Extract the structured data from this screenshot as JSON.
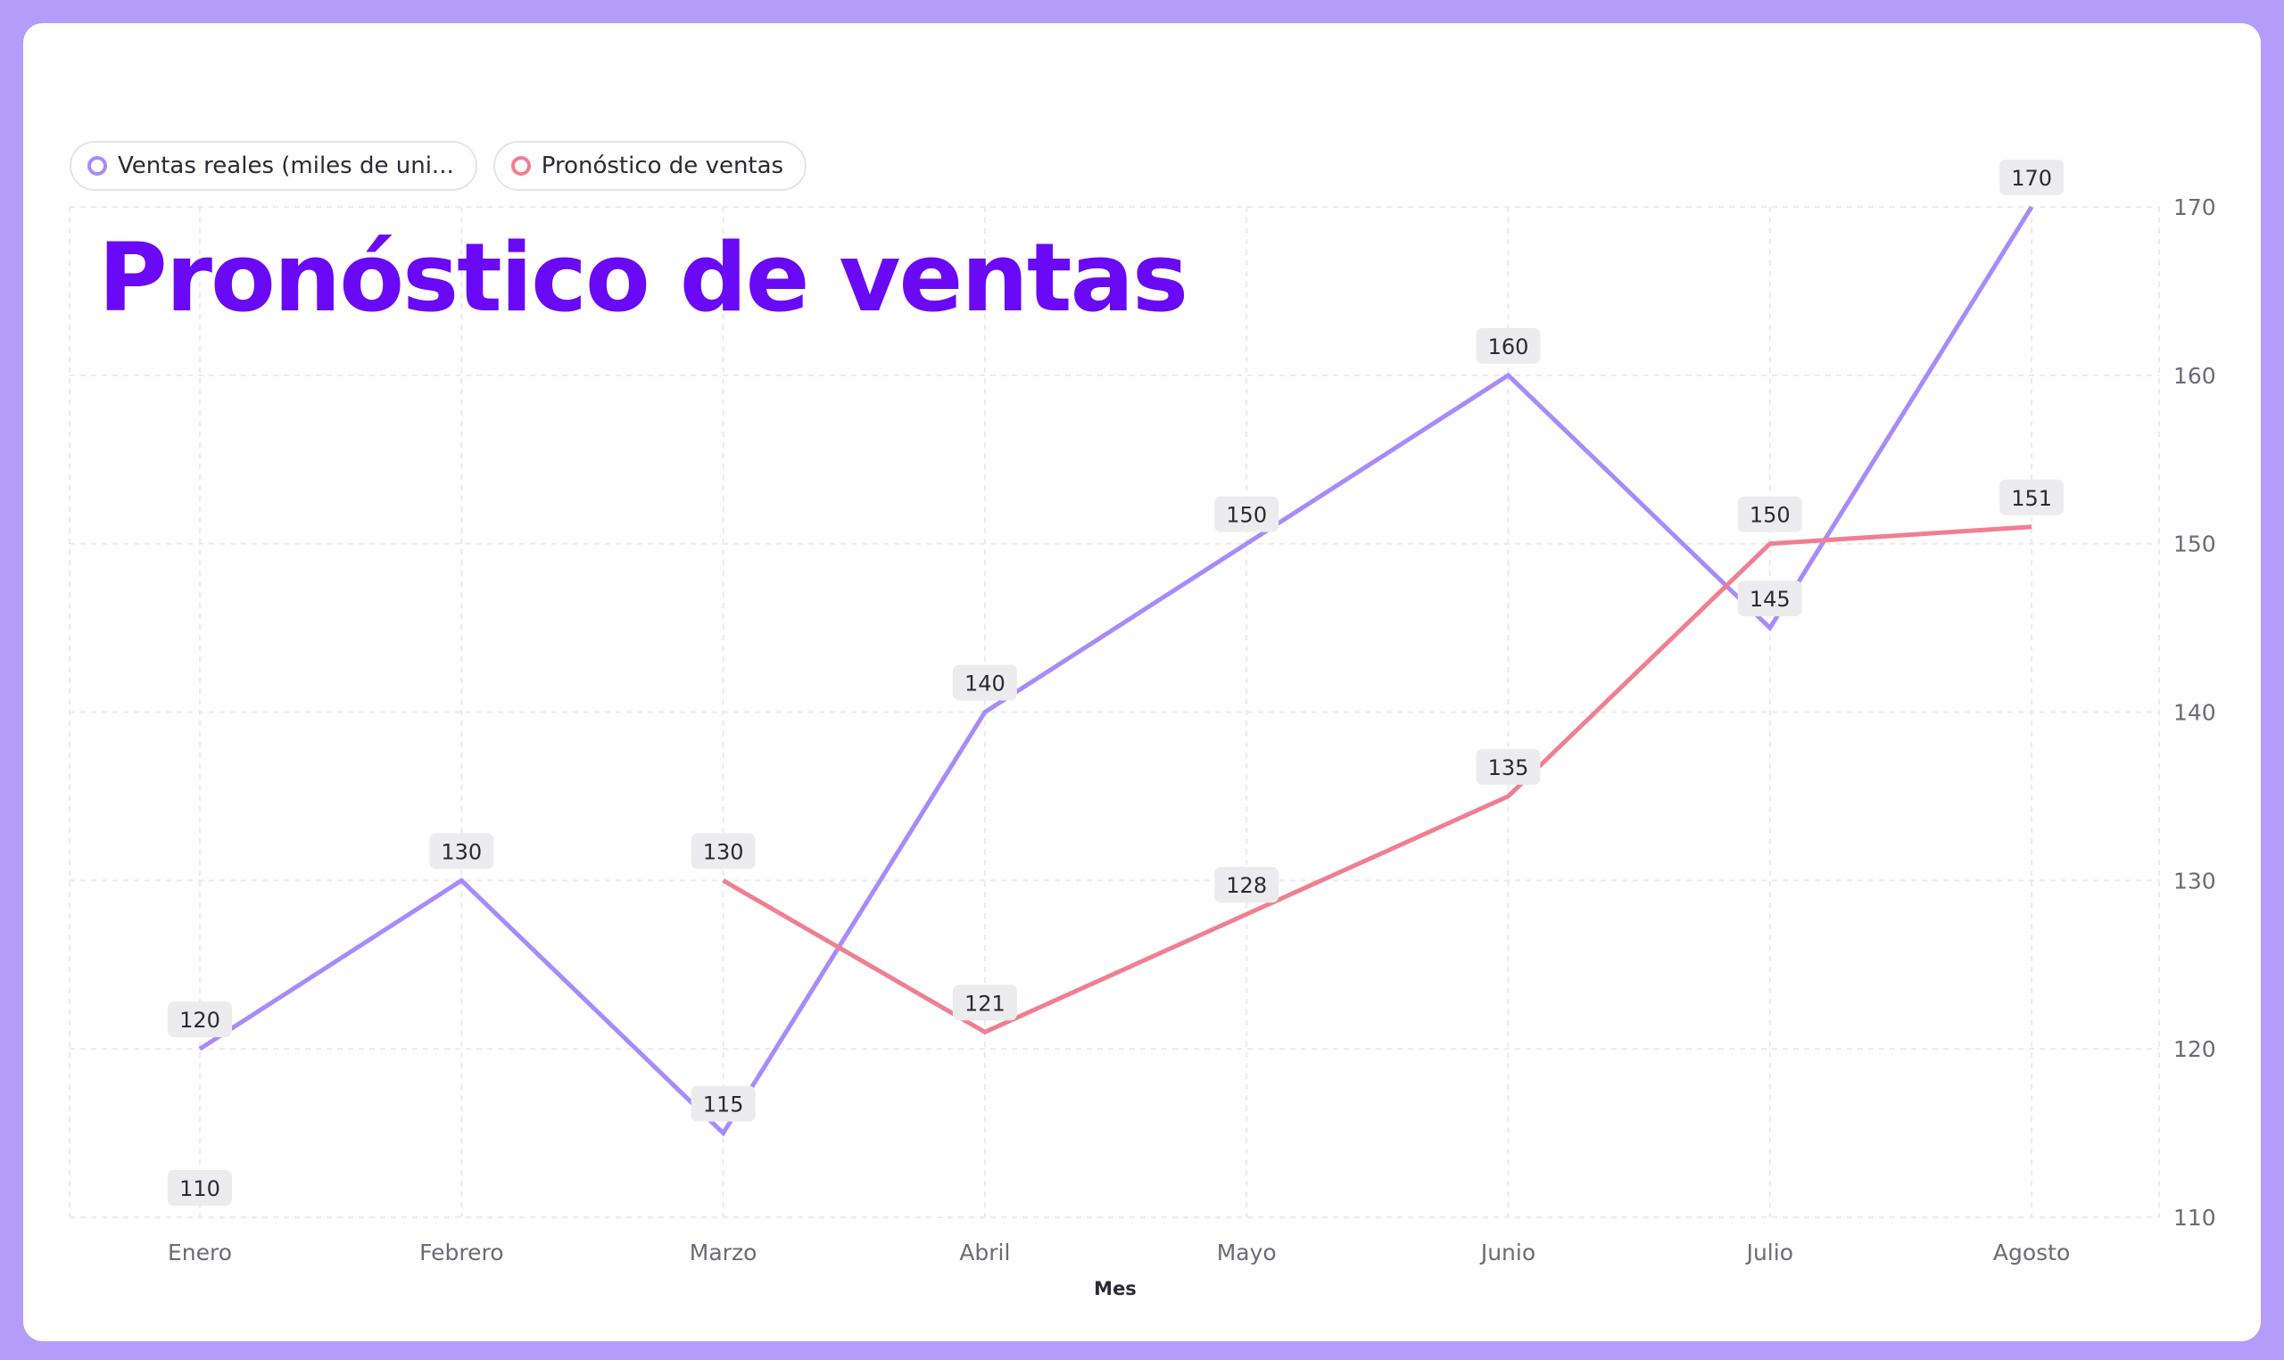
{
  "chart_data": {
    "type": "line",
    "title": "Pronóstico de ventas",
    "xlabel": "Mes",
    "ylabel": "",
    "categories": [
      "Enero",
      "Febrero",
      "Marzo",
      "Abril",
      "Mayo",
      "Junio",
      "Julio",
      "Agosto"
    ],
    "ylim": [
      110,
      170
    ],
    "yticks": [
      110,
      120,
      130,
      140,
      150,
      160,
      170
    ],
    "y_axis_side": "right",
    "grid": true,
    "legend_position": "top-left",
    "series": [
      {
        "name": "Ventas reales (miles de uni...",
        "color": "#a78bfa",
        "values": [
          120,
          130,
          115,
          140,
          150,
          160,
          145,
          170
        ]
      },
      {
        "name": "Pronóstico de ventas",
        "color": "#f07f91",
        "values": [
          null,
          null,
          130,
          121,
          128,
          135,
          150,
          151
        ]
      }
    ],
    "extra_labels": [
      "110"
    ]
  }
}
